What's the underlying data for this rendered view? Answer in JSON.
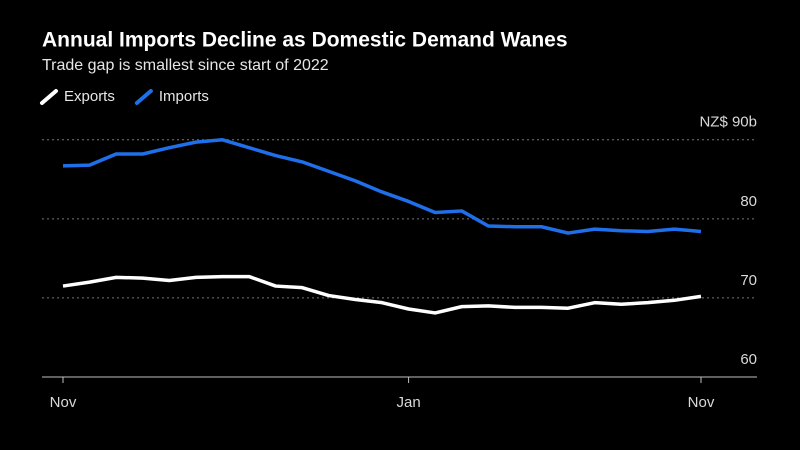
{
  "chart_data": {
    "type": "line",
    "title": "Annual Imports Decline as Domestic Demand Wanes",
    "subtitle": "Trade gap is smallest since start of 2022",
    "categories": [
      "Nov",
      null,
      null,
      null,
      null,
      null,
      null,
      null,
      null,
      null,
      null,
      null,
      null,
      "Jan",
      null,
      null,
      null,
      null,
      null,
      null,
      null,
      null,
      null,
      null,
      "Nov"
    ],
    "series": [
      {
        "name": "Exports",
        "color": "#ffffff",
        "values": [
          71.5,
          72.0,
          72.6,
          72.5,
          72.2,
          72.6,
          72.7,
          72.7,
          71.5,
          71.3,
          70.3,
          69.8,
          69.4,
          68.6,
          68.1,
          68.9,
          69.0,
          68.8,
          68.8,
          68.7,
          69.4,
          69.2,
          69.4,
          69.7,
          70.2
        ]
      },
      {
        "name": "Imports",
        "color": "#1f6fea",
        "values": [
          86.7,
          86.8,
          88.2,
          88.2,
          89.0,
          89.7,
          90.0,
          89.0,
          88.0,
          87.2,
          86.0,
          84.8,
          83.4,
          82.2,
          80.8,
          81.0,
          79.1,
          79.0,
          79.0,
          78.2,
          78.7,
          78.5,
          78.4,
          78.7,
          78.4
        ]
      }
    ],
    "ylim": [
      60,
      92.5
    ],
    "yticks": [
      60,
      70,
      80,
      {
        "value": 90,
        "label": "NZ$ 90b"
      }
    ],
    "grid": true
  }
}
